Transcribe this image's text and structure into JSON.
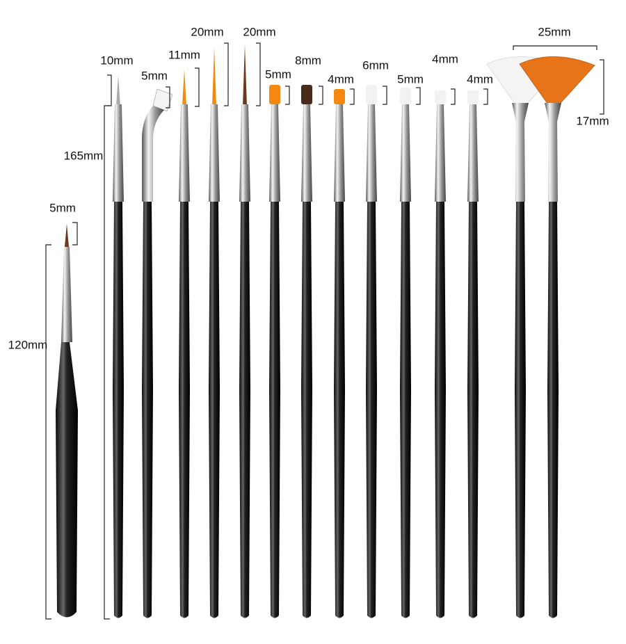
{
  "labels": [
    "10mm",
    "5mm",
    "11mm",
    "20mm",
    "20mm",
    "5mm",
    "8mm",
    "4mm",
    "6mm",
    "5mm",
    "4mm",
    "4mm",
    "25mm",
    "17mm",
    "165mm",
    "5mm",
    "120mm"
  ]
}
